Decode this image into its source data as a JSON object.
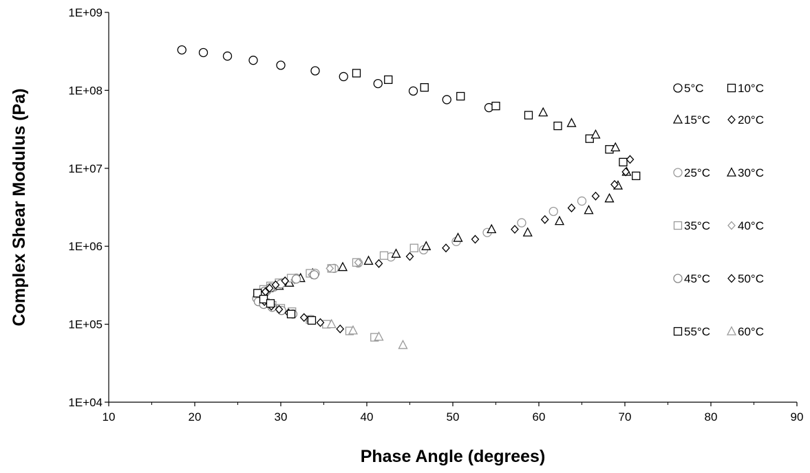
{
  "chart_data": {
    "type": "scatter",
    "title": "",
    "xlabel": "Phase Angle (degrees)",
    "ylabel": "Complex Shear Modulus (Pa)",
    "xlim": [
      10,
      90
    ],
    "ylim": [
      10000,
      1000000000
    ],
    "yscale": "log",
    "x_ticks": [
      10,
      20,
      30,
      40,
      50,
      60,
      70,
      80,
      90
    ],
    "x_tick_labels": [
      "10",
      "20",
      "30",
      "40",
      "50",
      "60",
      "70",
      "80",
      "90"
    ],
    "y_ticks": [
      10000,
      100000,
      1000000,
      10000000,
      100000000,
      1000000000
    ],
    "y_tick_labels": [
      "1E+04",
      "1E+05",
      "1E+06",
      "1E+07",
      "1E+08",
      "1E+09"
    ],
    "grid": false,
    "legend_position": "right",
    "series": [
      {
        "name": "5°C",
        "marker": "circle",
        "color": "#000000",
        "points": [
          [
            18.5,
            330000000
          ],
          [
            21.0,
            305000000
          ],
          [
            23.8,
            275000000
          ],
          [
            26.8,
            243000000
          ],
          [
            30.0,
            210000000
          ],
          [
            34.0,
            178000000
          ],
          [
            37.3,
            150000000
          ],
          [
            41.3,
            122000000
          ],
          [
            45.4,
            98000000
          ],
          [
            49.3,
            76000000
          ],
          [
            54.2,
            60000000
          ]
        ]
      },
      {
        "name": "10°C",
        "marker": "square",
        "color": "#000000",
        "points": [
          [
            38.8,
            166000000
          ],
          [
            42.5,
            137000000
          ],
          [
            46.7,
            109000000
          ],
          [
            50.9,
            84000000
          ],
          [
            55.0,
            63000000
          ],
          [
            58.8,
            48000000
          ],
          [
            62.2,
            35000000
          ],
          [
            65.9,
            24000000
          ],
          [
            68.2,
            17500000
          ],
          [
            69.8,
            12000000
          ],
          [
            71.3,
            8000000
          ]
        ]
      },
      {
        "name": "15°C",
        "marker": "triangle",
        "color": "#000000",
        "points": [
          [
            60.5,
            52000000
          ],
          [
            63.8,
            38000000
          ],
          [
            66.6,
            27000000
          ],
          [
            68.9,
            18500000
          ],
          [
            70.2,
            9000000
          ],
          [
            69.2,
            6000000
          ],
          [
            68.2,
            4100000
          ],
          [
            65.8,
            2900000
          ],
          [
            62.4,
            2100000
          ],
          [
            58.7,
            1500000
          ]
        ]
      },
      {
        "name": "20°C",
        "marker": "diamond",
        "color": "#000000",
        "points": [
          [
            70.6,
            13000000
          ],
          [
            70.1,
            9000000
          ],
          [
            68.8,
            6200000
          ],
          [
            66.6,
            4400000
          ],
          [
            63.8,
            3100000
          ],
          [
            60.7,
            2200000
          ],
          [
            57.2,
            1650000
          ],
          [
            52.6,
            1230000
          ],
          [
            49.2,
            950000
          ],
          [
            45.0,
            740000
          ],
          [
            41.4,
            600000
          ]
        ]
      },
      {
        "name": "25°C",
        "marker": "circle",
        "color": "#999999",
        "points": [
          [
            65.0,
            3800000
          ],
          [
            61.7,
            2800000
          ],
          [
            58.0,
            2000000
          ],
          [
            54.0,
            1500000
          ],
          [
            50.4,
            1150000
          ],
          [
            46.6,
            900000
          ],
          [
            42.8,
            730000
          ],
          [
            39.0,
            610000
          ],
          [
            36.2,
            520000
          ],
          [
            34.0,
            450000
          ],
          [
            31.8,
            390000
          ],
          [
            30.2,
            340000
          ],
          [
            29.2,
            300000
          ],
          [
            28.4,
            270000
          ],
          [
            27.8,
            245000
          ],
          [
            27.3,
            225000
          ]
        ]
      },
      {
        "name": "30°C",
        "marker": "triangle",
        "color": "#000000",
        "points": [
          [
            54.5,
            1650000
          ],
          [
            50.6,
            1280000
          ],
          [
            46.9,
            1000000
          ],
          [
            43.4,
            800000
          ],
          [
            40.2,
            650000
          ],
          [
            37.2,
            540000
          ],
          [
            33.7,
            450000
          ],
          [
            32.3,
            390000
          ],
          [
            31.0,
            340000
          ],
          [
            29.8,
            310000
          ],
          [
            28.6,
            290000
          ],
          [
            28.0,
            260000
          ]
        ]
      },
      {
        "name": "35°C",
        "marker": "square",
        "color": "#999999",
        "points": [
          [
            45.5,
            950000
          ],
          [
            42.0,
            760000
          ],
          [
            38.8,
            620000
          ],
          [
            35.9,
            520000
          ],
          [
            33.4,
            450000
          ],
          [
            31.2,
            390000
          ],
          [
            29.8,
            340000
          ],
          [
            28.8,
            310000
          ],
          [
            28.0,
            280000
          ],
          [
            27.3,
            250000
          ],
          [
            27.6,
            205000
          ],
          [
            28.2,
            190000
          ],
          [
            29.0,
            175000
          ],
          [
            30.0,
            160000
          ],
          [
            31.3,
            145000
          ],
          [
            33.4,
            115000
          ],
          [
            35.3,
            100000
          ],
          [
            38.0,
            82000
          ],
          [
            40.9,
            68000
          ]
        ]
      },
      {
        "name": "40°C",
        "marker": "diamond",
        "color": "#999999",
        "points": [
          [
            39.0,
            620000
          ],
          [
            35.7,
            520000
          ],
          [
            33.6,
            430000
          ],
          [
            31.6,
            370000
          ],
          [
            30.1,
            330000
          ],
          [
            29.2,
            300000
          ],
          [
            28.5,
            270000
          ],
          [
            27.9,
            245000
          ],
          [
            27.6,
            225000
          ],
          [
            27.9,
            200000
          ],
          [
            28.4,
            185000
          ]
        ]
      },
      {
        "name": "45°C",
        "marker": "circle",
        "color": "#888888",
        "points": [
          [
            33.9,
            430000
          ],
          [
            31.8,
            380000
          ],
          [
            30.0,
            330000
          ],
          [
            28.8,
            295000
          ],
          [
            28.1,
            265000
          ],
          [
            27.6,
            240000
          ],
          [
            27.2,
            215000
          ],
          [
            27.4,
            195000
          ],
          [
            28.0,
            180000
          ],
          [
            29.0,
            165000
          ],
          [
            30.1,
            150000
          ],
          [
            31.4,
            135000
          ],
          [
            33.5,
            115000
          ]
        ]
      },
      {
        "name": "50°C",
        "marker": "diamond",
        "color": "#000000",
        "points": [
          [
            30.5,
            360000
          ],
          [
            29.4,
            320000
          ],
          [
            28.7,
            290000
          ],
          [
            28.2,
            260000
          ],
          [
            27.8,
            235000
          ],
          [
            28.1,
            195000
          ],
          [
            28.9,
            170000
          ],
          [
            29.8,
            155000
          ],
          [
            30.9,
            140000
          ],
          [
            32.7,
            122000
          ],
          [
            34.6,
            105000
          ],
          [
            36.9,
            87000
          ]
        ]
      },
      {
        "name": "55°C",
        "marker": "square",
        "color": "#000000",
        "points": [
          [
            27.3,
            250000
          ],
          [
            28.0,
            210000
          ],
          [
            28.8,
            185000
          ],
          [
            31.2,
            135000
          ],
          [
            33.6,
            112000
          ]
        ]
      },
      {
        "name": "60°C",
        "marker": "triangle",
        "color": "#999999",
        "points": [
          [
            35.9,
            100000
          ],
          [
            38.4,
            83000
          ],
          [
            41.4,
            69000
          ],
          [
            44.2,
            54000
          ]
        ]
      }
    ]
  }
}
